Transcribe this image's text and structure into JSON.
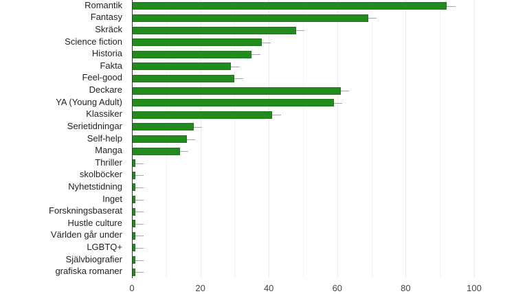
{
  "chart_data": {
    "type": "bar",
    "orientation": "horizontal",
    "title": "",
    "xlabel": "",
    "ylabel": "",
    "xlim": [
      0,
      100
    ],
    "grid": true,
    "legend": null,
    "x_ticks": [
      "0",
      "20",
      "40",
      "60",
      "80",
      "100"
    ],
    "bar_color": "#228b1e",
    "error_bar_color": "#a8a8a8",
    "categories": [
      "Romantik",
      "Fantasy",
      "Skräck",
      "Science fiction",
      "Historia",
      "Fakta",
      "Feel-good",
      "Deckare",
      "YA (Young Adult)",
      "Klassiker",
      "Serietidningar",
      "Self-help",
      "Manga",
      "Thriller",
      "skolböcker",
      "Nyhetstidning",
      "Inget",
      "Forskningsbaserat",
      "Hustle culture",
      "Världen går under",
      "LGBTQ+",
      "Självbiografier",
      "grafiska romaner"
    ],
    "values": [
      92,
      69,
      48,
      38,
      35,
      29,
      30,
      61,
      59,
      41,
      18,
      16,
      14,
      1,
      1,
      1,
      1,
      1,
      1,
      1,
      1,
      1,
      1
    ],
    "error_bar_extent": [
      2.5,
      2.5,
      2.5,
      2.5,
      2.5,
      2.5,
      2.5,
      2.5,
      2.5,
      2.5,
      2.5,
      2.5,
      2.5,
      2.5,
      2.5,
      2.5,
      2.5,
      2.5,
      2.5,
      2.5,
      2.5,
      2.5,
      2.5
    ]
  }
}
